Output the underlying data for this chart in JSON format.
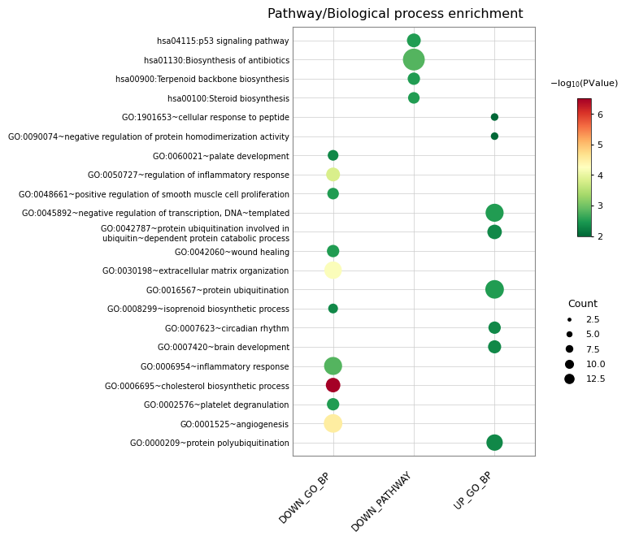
{
  "title": "Pathway/Biological process enrichment",
  "categories": [
    "hsa04115:p53 signaling pathway",
    "hsa01130:Biosynthesis of antibiotics",
    "hsa00900:Terpenoid backbone biosynthesis",
    "hsa00100:Steroid biosynthesis",
    "GO:1901653~cellular response to peptide",
    "GO:0090074~negative regulation of protein homodimerization activity",
    "GO:0060021~palate development",
    "GO:0050727~regulation of inflammatory response",
    "GO:0048661~positive regulation of smooth muscle cell proliferation",
    "GO:0045892~negative regulation of transcription, DNA~templated",
    "GO:0042787~protein ubiquitination involved in\nubiquitin~dependent protein catabolic process",
    "GO:0042060~wound healing",
    "GO:0030198~extracellular matrix organization",
    "GO:0016567~protein ubiquitination",
    "GO:0008299~isoprenoid biosynthetic process",
    "GO:0007623~circadian rhythm",
    "GO:0007420~brain development",
    "GO:0006954~inflammatory response",
    "GO:0006695~cholesterol biosynthetic process",
    "GO:0002576~platelet degranulation",
    "GO:0001525~angiogenesis",
    "GO:0000209~protein polyubiquitination"
  ],
  "x_labels": [
    "DOWN_GO_BP",
    "DOWN_PATHWAY",
    "UP_GO_BP"
  ],
  "dots": [
    {
      "cat": "hsa04115:p53 signaling pathway",
      "x": "DOWN_PATHWAY",
      "size": 5.0,
      "pval": 2.5
    },
    {
      "cat": "hsa01130:Biosynthesis of antibiotics",
      "x": "DOWN_PATHWAY",
      "size": 12.5,
      "pval": 2.8
    },
    {
      "cat": "hsa00900:Terpenoid backbone biosynthesis",
      "x": "DOWN_PATHWAY",
      "size": 4.0,
      "pval": 2.5
    },
    {
      "cat": "hsa00100:Steroid biosynthesis",
      "x": "DOWN_PATHWAY",
      "size": 3.5,
      "pval": 2.5
    },
    {
      "cat": "GO:1901653~cellular response to peptide",
      "x": "UP_GO_BP",
      "size": 1.5,
      "pval": 2.0
    },
    {
      "cat": "GO:0090074~negative regulation of protein homodimerization activity",
      "x": "UP_GO_BP",
      "size": 1.5,
      "pval": 2.0
    },
    {
      "cat": "GO:0060021~palate development",
      "x": "DOWN_GO_BP",
      "size": 3.0,
      "pval": 2.3
    },
    {
      "cat": "GO:0050727~regulation of inflammatory response",
      "x": "DOWN_GO_BP",
      "size": 5.0,
      "pval": 3.8
    },
    {
      "cat": "GO:0048661~positive regulation of smooth muscle cell proliferation",
      "x": "DOWN_GO_BP",
      "size": 3.5,
      "pval": 2.5
    },
    {
      "cat": "GO:0045892~negative regulation of transcription, DNA~templated",
      "x": "UP_GO_BP",
      "size": 8.5,
      "pval": 2.5
    },
    {
      "cat": "GO:0042787~protein ubiquitination involved in\nubiquitin~dependent protein catabolic process",
      "x": "UP_GO_BP",
      "size": 5.5,
      "pval": 2.3
    },
    {
      "cat": "GO:0042060~wound healing",
      "x": "DOWN_GO_BP",
      "size": 4.0,
      "pval": 2.5
    },
    {
      "cat": "GO:0030198~extracellular matrix organization",
      "x": "DOWN_GO_BP",
      "size": 8.0,
      "pval": 4.2
    },
    {
      "cat": "GO:0016567~protein ubiquitination",
      "x": "UP_GO_BP",
      "size": 9.0,
      "pval": 2.5
    },
    {
      "cat": "GO:0008299~isoprenoid biosynthetic process",
      "x": "DOWN_GO_BP",
      "size": 2.5,
      "pval": 2.3
    },
    {
      "cat": "GO:0007623~circadian rhythm",
      "x": "UP_GO_BP",
      "size": 4.0,
      "pval": 2.3
    },
    {
      "cat": "GO:0007420~brain development",
      "x": "UP_GO_BP",
      "size": 4.5,
      "pval": 2.3
    },
    {
      "cat": "GO:0006954~inflammatory response",
      "x": "DOWN_GO_BP",
      "size": 8.5,
      "pval": 2.8
    },
    {
      "cat": "GO:0006695~cholesterol biosynthetic process",
      "x": "DOWN_GO_BP",
      "size": 5.5,
      "pval": 6.5
    },
    {
      "cat": "GO:0002576~platelet degranulation",
      "x": "DOWN_GO_BP",
      "size": 4.0,
      "pval": 2.5
    },
    {
      "cat": "GO:0001525~angiogenesis",
      "x": "DOWN_GO_BP",
      "size": 9.0,
      "pval": 4.5
    },
    {
      "cat": "GO:0000209~protein polyubiquitination",
      "x": "UP_GO_BP",
      "size": 7.0,
      "pval": 2.3
    }
  ],
  "pval_min": 2.0,
  "pval_max": 6.5,
  "size_scale": 30,
  "colormap": "RdYlGn_r",
  "background_color": "#ffffff"
}
